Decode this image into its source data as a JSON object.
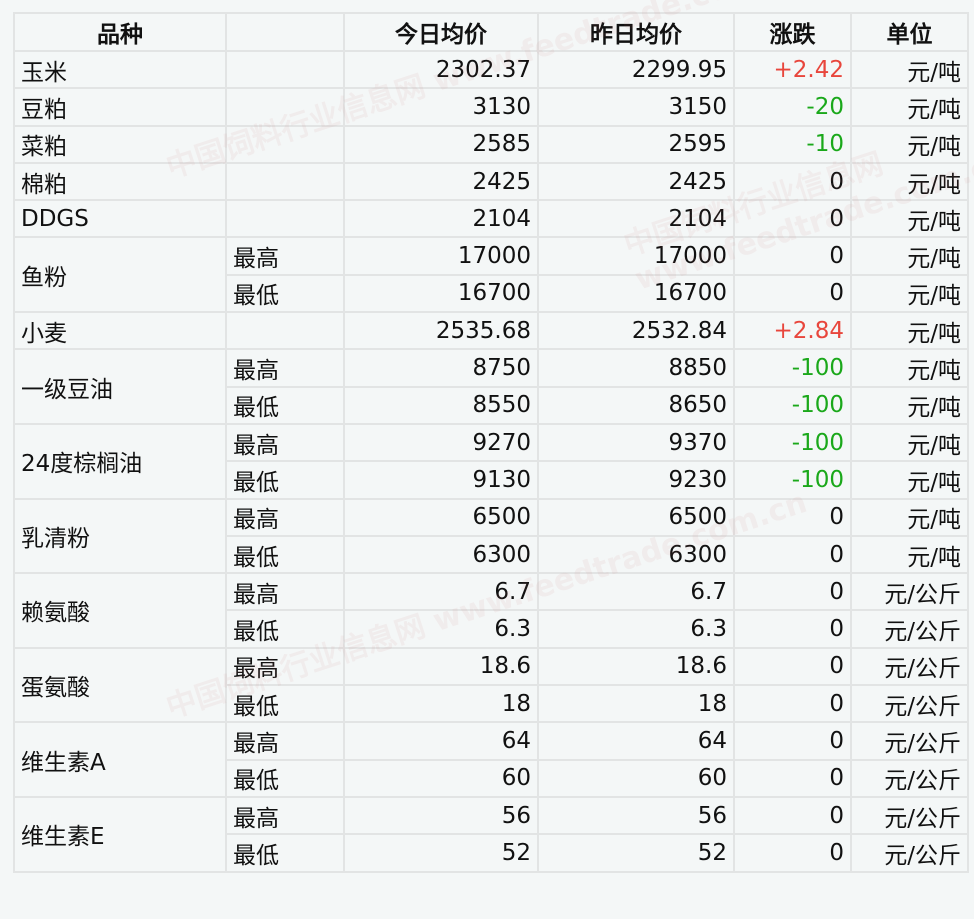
{
  "headers": [
    "品种",
    "",
    "今日均价",
    "昨日均价",
    "涨跌",
    "单位"
  ],
  "rows": [
    {
      "name": "玉米",
      "sub": "",
      "today": "2302.37",
      "yesterday": "2299.95",
      "change": "+2.42",
      "unit": "元/吨",
      "span": 1
    },
    {
      "name": "豆粕",
      "sub": "",
      "today": "3130",
      "yesterday": "3150",
      "change": "-20",
      "unit": "元/吨",
      "span": 1
    },
    {
      "name": "菜粕",
      "sub": "",
      "today": "2585",
      "yesterday": "2595",
      "change": "-10",
      "unit": "元/吨",
      "span": 1
    },
    {
      "name": "棉粕",
      "sub": "",
      "today": "2425",
      "yesterday": "2425",
      "change": "0",
      "unit": "元/吨",
      "span": 1
    },
    {
      "name": "DDGS",
      "sub": "",
      "today": "2104",
      "yesterday": "2104",
      "change": "0",
      "unit": "元/吨",
      "span": 1
    },
    {
      "name": "鱼粉",
      "sub": "最高",
      "today": "17000",
      "yesterday": "17000",
      "change": "0",
      "unit": "元/吨",
      "span": 2
    },
    {
      "name": "",
      "sub": "最低",
      "today": "16700",
      "yesterday": "16700",
      "change": "0",
      "unit": "元/吨",
      "span": 0
    },
    {
      "name": "小麦",
      "sub": "",
      "today": "2535.68",
      "yesterday": "2532.84",
      "change": "+2.84",
      "unit": "元/吨",
      "span": 1
    },
    {
      "name": "一级豆油",
      "sub": "最高",
      "today": "8750",
      "yesterday": "8850",
      "change": "-100",
      "unit": "元/吨",
      "span": 2
    },
    {
      "name": "",
      "sub": "最低",
      "today": "8550",
      "yesterday": "8650",
      "change": "-100",
      "unit": "元/吨",
      "span": 0
    },
    {
      "name": "24度棕榈油",
      "sub": "最高",
      "today": "9270",
      "yesterday": "9370",
      "change": "-100",
      "unit": "元/吨",
      "span": 2
    },
    {
      "name": "",
      "sub": "最低",
      "today": "9130",
      "yesterday": "9230",
      "change": "-100",
      "unit": "元/吨",
      "span": 0
    },
    {
      "name": "乳清粉",
      "sub": "最高",
      "today": "6500",
      "yesterday": "6500",
      "change": "0",
      "unit": "元/吨",
      "span": 2
    },
    {
      "name": "",
      "sub": "最低",
      "today": "6300",
      "yesterday": "6300",
      "change": "0",
      "unit": "元/吨",
      "span": 0
    },
    {
      "name": "赖氨酸",
      "sub": "最高",
      "today": "6.7",
      "yesterday": "6.7",
      "change": "0",
      "unit": "元/公斤",
      "span": 2
    },
    {
      "name": "",
      "sub": "最低",
      "today": "6.3",
      "yesterday": "6.3",
      "change": "0",
      "unit": "元/公斤",
      "span": 0
    },
    {
      "name": "蛋氨酸",
      "sub": "最高",
      "today": "18.6",
      "yesterday": "18.6",
      "change": "0",
      "unit": "元/公斤",
      "span": 2
    },
    {
      "name": "",
      "sub": "最低",
      "today": "18",
      "yesterday": "18",
      "change": "0",
      "unit": "元/公斤",
      "span": 0
    },
    {
      "name": "维生素A",
      "sub": "最高",
      "today": "64",
      "yesterday": "64",
      "change": "0",
      "unit": "元/公斤",
      "span": 2
    },
    {
      "name": "",
      "sub": "最低",
      "today": "60",
      "yesterday": "60",
      "change": "0",
      "unit": "元/公斤",
      "span": 0
    },
    {
      "name": "维生素E",
      "sub": "最高",
      "today": "56",
      "yesterday": "56",
      "change": "0",
      "unit": "元/公斤",
      "span": 2
    },
    {
      "name": "",
      "sub": "最低",
      "today": "52",
      "yesterday": "52",
      "change": "0",
      "unit": "元/公斤",
      "span": 0
    }
  ],
  "watermark": "中国饲料行业信息网 www.feedtrade.com.cn",
  "colors": {
    "up": "#e8463c",
    "down": "#1aa81a"
  }
}
